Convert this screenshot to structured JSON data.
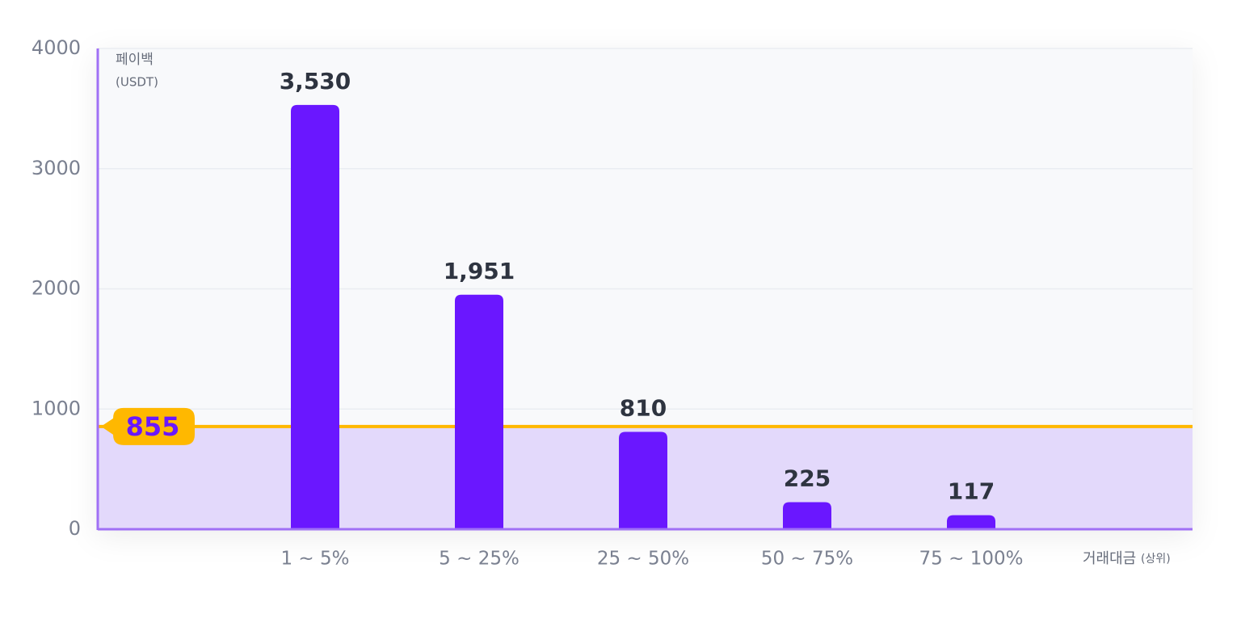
{
  "chart_data": {
    "type": "bar",
    "ylabel": "페이백",
    "ylabel_unit": "(USDT)",
    "xlabel": "거래대금",
    "xlabel_unit": "(상위)",
    "categories": [
      "1 ~ 5%",
      "5 ~ 25%",
      "25 ~ 50%",
      "50 ~ 75%",
      "75 ~ 100%"
    ],
    "values": [
      3530,
      1951,
      810,
      225,
      117
    ],
    "value_labels": [
      "3,530",
      "1,951",
      "810",
      "225",
      "117"
    ],
    "color": "#6a17ff",
    "ylim": [
      0,
      4000
    ],
    "yticks": [
      0,
      1000,
      2000,
      3000,
      4000
    ],
    "grid": true,
    "reference_line": {
      "value": 855,
      "color": "#ffb800"
    }
  }
}
